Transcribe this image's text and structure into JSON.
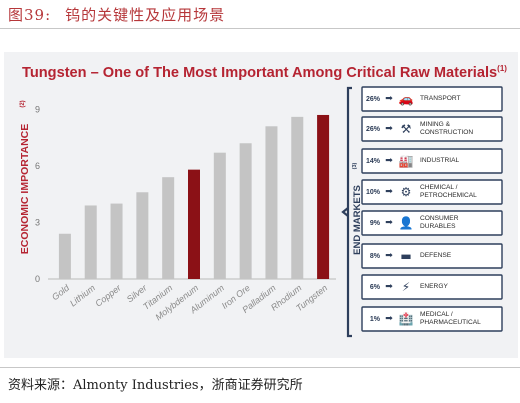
{
  "figure": {
    "number": "图39:",
    "caption": "钨的关键性及应用场景",
    "source": "资料来源：Almonty Industries，浙商证券研究所"
  },
  "chart_data": {
    "type": "bar",
    "title": "Tungsten – One of The Most Important Among Critical Raw Materials",
    "title_note": "(1)",
    "ylabel": "ECONOMIC IMPORTANCE",
    "ylabel_note": "(2)",
    "yticks": [
      "0",
      "3",
      "6",
      "9"
    ],
    "ylim": [
      0,
      9.6
    ],
    "grid": false,
    "categories": [
      "Gold",
      "Lithium",
      "Copper",
      "Silver",
      "Titanium",
      "Molybdenum",
      "Aluminum",
      "Iron Ore",
      "Palladium",
      "Rhodium",
      "Tungsten"
    ],
    "values": [
      2.4,
      3.9,
      4.0,
      4.6,
      5.4,
      5.8,
      6.7,
      7.2,
      8.1,
      8.6,
      8.7
    ],
    "highlighted": [
      "Molybdenum",
      "Tungsten"
    ],
    "colors": {
      "bar": "#c4c4c4",
      "highlight": "#8b1116"
    }
  },
  "end_markets": {
    "heading": "END MARKETS",
    "heading_note": "(3)",
    "colors": {
      "box": "#2e3f5c",
      "bg": "#ffffff"
    },
    "items": [
      {
        "pct": "26%",
        "label": "TRANSPORT",
        "icon": "car-icon",
        "glyph": "🚗"
      },
      {
        "pct": "26%",
        "label": "MINING &\nCONSTRUCTION",
        "icon": "hammer-pick-icon",
        "glyph": "⚒"
      },
      {
        "pct": "14%",
        "label": "INDUSTRIAL",
        "icon": "factory-icon",
        "glyph": "🏭"
      },
      {
        "pct": "10%",
        "label": "CHEMICAL /\nPETROCHEMICAL",
        "icon": "gears-icon",
        "glyph": "⚙"
      },
      {
        "pct": "9%",
        "label": "CONSUMER\nDURABLES",
        "icon": "person-icon",
        "glyph": "👤"
      },
      {
        "pct": "8%",
        "label": "DEFENSE",
        "icon": "tank-icon",
        "glyph": "▬"
      },
      {
        "pct": "6%",
        "label": "ENERGY",
        "icon": "lightning-icon",
        "glyph": "⚡"
      },
      {
        "pct": "1%",
        "label": "MEDICAL /\nPHARMACEUTICAL",
        "icon": "hospital-icon",
        "glyph": "🏥"
      }
    ]
  }
}
